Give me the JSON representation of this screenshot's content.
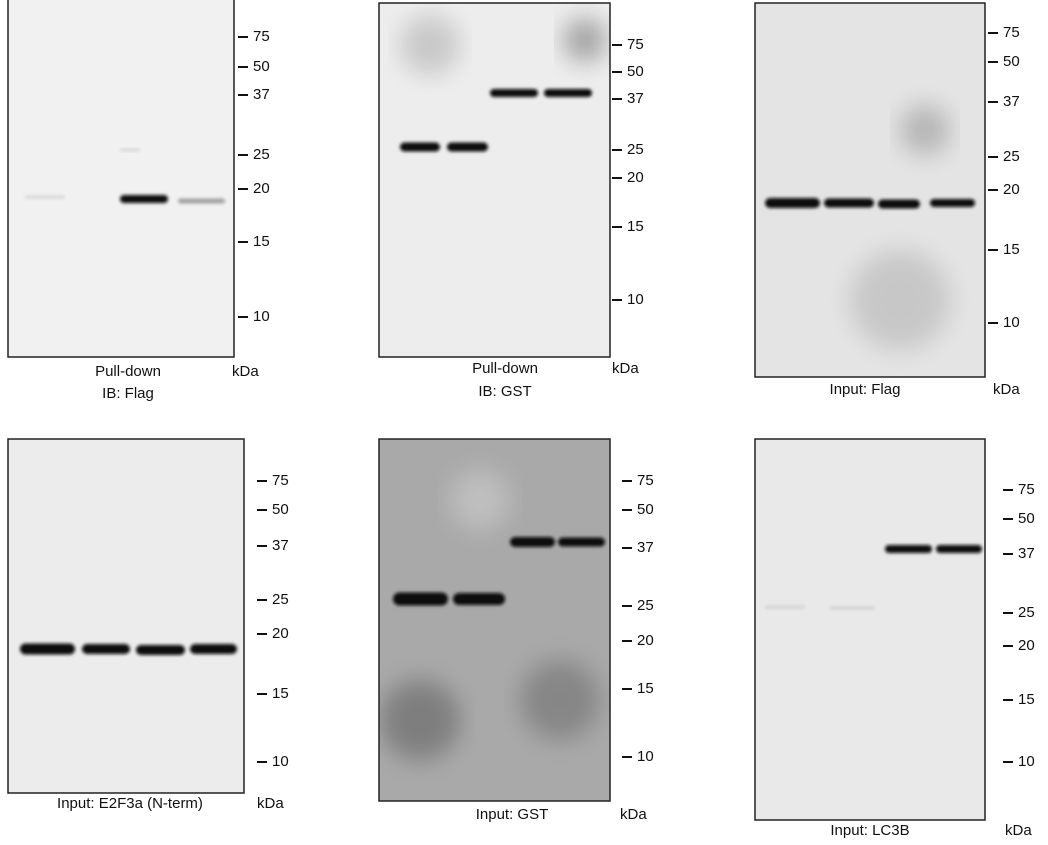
{
  "panels": [
    {
      "caption": [
        "Pull-down",
        "IB: Flag"
      ],
      "unit": "kDa",
      "markers": [
        75,
        50,
        37,
        25,
        20,
        15,
        10
      ]
    },
    {
      "caption": [
        "Pull-down",
        "IB: GST"
      ],
      "unit": "kDa",
      "markers": [
        75,
        50,
        37,
        25,
        20,
        15,
        10
      ]
    },
    {
      "caption": [
        "Input: Flag"
      ],
      "unit": "kDa",
      "markers": [
        75,
        50,
        37,
        25,
        20,
        15,
        10
      ]
    },
    {
      "caption": [
        "Input: E2F3a (N-term)"
      ],
      "unit": "kDa",
      "markers": [
        75,
        50,
        37,
        25,
        20,
        15,
        10
      ]
    },
    {
      "caption": [
        "Input: GST"
      ],
      "unit": "kDa",
      "markers": [
        75,
        50,
        37,
        25,
        20,
        15,
        10
      ]
    },
    {
      "caption": [
        "Input: LC3B"
      ],
      "unit": "kDa",
      "markers": [
        75,
        50,
        37,
        25,
        20,
        15,
        10
      ]
    }
  ]
}
